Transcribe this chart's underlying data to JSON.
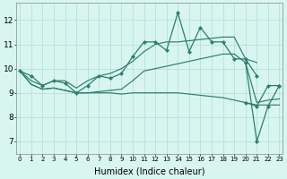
{
  "x": [
    0,
    1,
    2,
    3,
    4,
    5,
    6,
    7,
    8,
    9,
    10,
    11,
    12,
    13,
    14,
    15,
    16,
    17,
    18,
    19,
    20,
    21,
    22,
    23
  ],
  "line_spiky": [
    9.9,
    9.7,
    9.3,
    9.5,
    9.4,
    9.0,
    9.3,
    9.7,
    9.6,
    9.8,
    10.5,
    11.1,
    11.1,
    10.75,
    12.3,
    10.7,
    11.7,
    11.1,
    11.1,
    10.4,
    10.4,
    9.7,
    null,
    null
  ],
  "line_smooth_up": [
    9.9,
    9.5,
    9.3,
    9.5,
    9.5,
    9.2,
    9.5,
    9.7,
    9.8,
    10.0,
    10.3,
    10.7,
    11.0,
    11.1,
    11.1,
    11.15,
    11.2,
    11.25,
    11.3,
    11.3,
    10.4,
    10.25,
    null,
    null
  ],
  "line_flat_decline": [
    9.9,
    9.35,
    9.15,
    9.2,
    9.1,
    9.0,
    9.0,
    9.0,
    9.0,
    8.95,
    9.0,
    9.0,
    9.0,
    9.0,
    9.0,
    8.95,
    8.9,
    8.85,
    8.8,
    8.7,
    8.6,
    8.5,
    8.5,
    8.5
  ],
  "line_gradual_rise": [
    9.9,
    9.35,
    9.15,
    9.2,
    9.1,
    9.0,
    9.0,
    9.05,
    9.1,
    9.15,
    9.5,
    9.9,
    10.0,
    10.1,
    10.2,
    10.3,
    10.4,
    10.5,
    10.6,
    10.6,
    10.25,
    8.6,
    8.7,
    8.75
  ],
  "line_right_spiky": [
    null,
    null,
    null,
    null,
    null,
    null,
    null,
    null,
    null,
    null,
    null,
    null,
    null,
    null,
    null,
    null,
    null,
    null,
    null,
    null,
    8.6,
    8.45,
    9.3,
    9.3
  ],
  "line_right_deep": [
    null,
    null,
    null,
    null,
    null,
    null,
    null,
    null,
    null,
    null,
    null,
    null,
    null,
    null,
    null,
    null,
    null,
    null,
    null,
    null,
    10.25,
    7.0,
    8.45,
    9.3
  ],
  "color": "#2e7d6e",
  "bg_color": "#d8f5f0",
  "grid_color": "#aeddd8",
  "xlabel": "Humidex (Indice chaleur)",
  "xlabel_fontsize": 7,
  "yticks": [
    7,
    8,
    9,
    10,
    11,
    12
  ],
  "xticks": [
    0,
    1,
    2,
    3,
    4,
    5,
    6,
    7,
    8,
    9,
    10,
    11,
    12,
    13,
    14,
    15,
    16,
    17,
    18,
    19,
    20,
    21,
    22,
    23
  ],
  "ylim": [
    6.5,
    12.7
  ],
  "xlim": [
    -0.3,
    23.3
  ]
}
